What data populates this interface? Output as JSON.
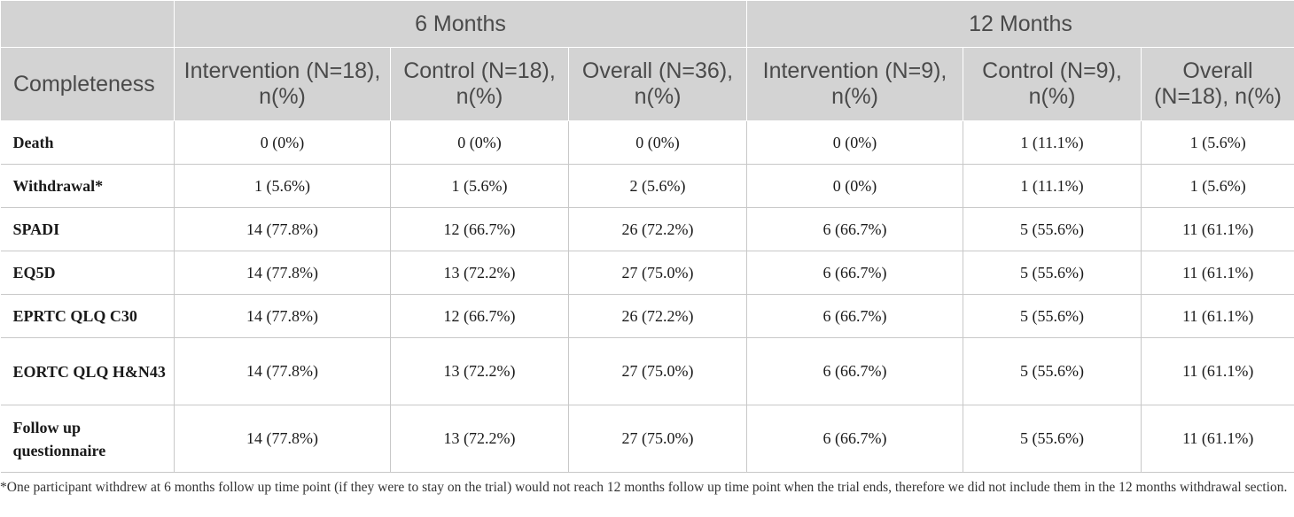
{
  "header": {
    "groups": [
      "6 Months",
      "12 Months"
    ],
    "row_label": "Completeness",
    "columns": [
      "Intervention (N=18), n(%)",
      "Control (N=18), n(%)",
      "Overall (N=36), n(%)",
      "Intervention (N=9), n(%)",
      "Control (N=9), n(%)",
      "Overall (N=18), n(%)"
    ]
  },
  "rows": [
    {
      "label": "Death",
      "values": [
        "0 (0%)",
        "0 (0%)",
        "0 (0%)",
        "0 (0%)",
        "1 (11.1%)",
        "1 (5.6%)"
      ]
    },
    {
      "label": "Withdrawal*",
      "values": [
        "1 (5.6%)",
        "1 (5.6%)",
        "2 (5.6%)",
        "0 (0%)",
        "1 (11.1%)",
        "1 (5.6%)"
      ]
    },
    {
      "label": "SPADI",
      "values": [
        "14 (77.8%)",
        "12 (66.7%)",
        "26 (72.2%)",
        "6 (66.7%)",
        "5 (55.6%)",
        "11 (61.1%)"
      ]
    },
    {
      "label": "EQ5D",
      "values": [
        "14 (77.8%)",
        "13 (72.2%)",
        "27 (75.0%)",
        "6 (66.7%)",
        "5 (55.6%)",
        "11 (61.1%)"
      ]
    },
    {
      "label": "EPRTC QLQ C30",
      "values": [
        "14 (77.8%)",
        "12 (66.7%)",
        "26 (72.2%)",
        "6 (66.7%)",
        "5 (55.6%)",
        "11 (61.1%)"
      ]
    },
    {
      "label": "EORTC QLQ H&N43",
      "values": [
        "14 (77.8%)",
        "13 (72.2%)",
        "27 (75.0%)",
        "6 (66.7%)",
        "5 (55.6%)",
        "11 (61.1%)"
      ]
    },
    {
      "label": "Follow up questionnaire",
      "values": [
        "14 (77.8%)",
        "13 (72.2%)",
        "27 (75.0%)",
        "6 (66.7%)",
        "5 (55.6%)",
        "11 (61.1%)"
      ]
    }
  ],
  "footnote": "*One participant withdrew at 6 months follow up time point (if they were to stay on the trial) would not reach 12 months follow up time point when the trial ends, therefore we did not include them in the 12 months withdrawal section."
}
